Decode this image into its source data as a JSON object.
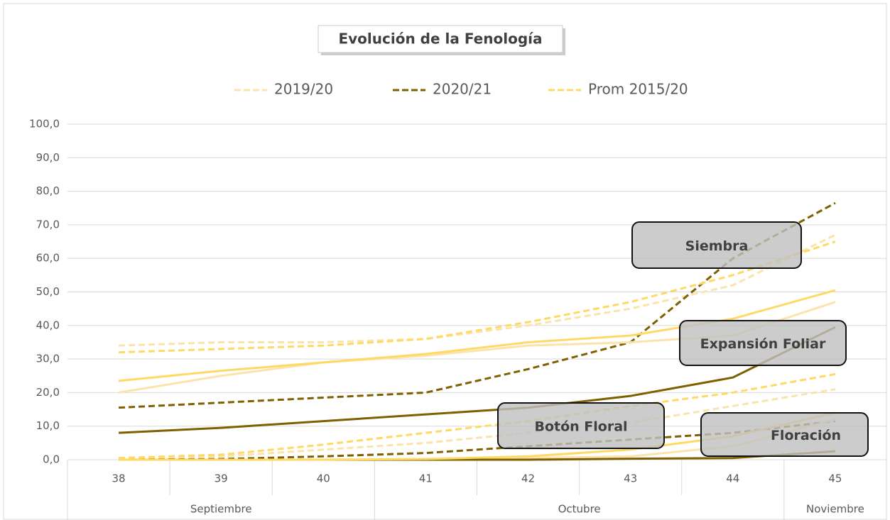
{
  "chart_data": {
    "type": "line",
    "title": "Evolución de la Fenología",
    "categories": [
      "38",
      "39",
      "40",
      "41",
      "42",
      "43",
      "44",
      "45"
    ],
    "months": [
      {
        "label": "Septiembre",
        "span": 3
      },
      {
        "label": "Octubre",
        "span": 4
      },
      {
        "label": "Noviembre",
        "span": 1
      }
    ],
    "ylim": [
      0,
      100
    ],
    "yticks": [
      {
        "value": 0,
        "label": "0,0"
      },
      {
        "value": 10,
        "label": "10,0"
      },
      {
        "value": 20,
        "label": "20,0"
      },
      {
        "value": 30,
        "label": "30,0"
      },
      {
        "value": 40,
        "label": "40,0"
      },
      {
        "value": 50,
        "label": "50,0"
      },
      {
        "value": 60,
        "label": "60,0"
      },
      {
        "value": 70,
        "label": "70,0"
      },
      {
        "value": 80,
        "label": "80,0"
      },
      {
        "value": 90,
        "label": "90,0"
      },
      {
        "value": 100,
        "label": "100,0"
      }
    ],
    "grid": true,
    "legend": "top",
    "stages": [
      {
        "label": "Siembra",
        "dashed": true,
        "series": [
          {
            "name": "2019/20",
            "color": "#fbe3ac",
            "values": [
              34,
              35,
              35,
              36,
              40,
              45,
              52,
              67
            ]
          },
          {
            "name": "2020/21",
            "color": "#7f6000",
            "values": [
              15.5,
              17,
              18.5,
              20,
              27,
              35,
              60,
              76.5
            ]
          },
          {
            "name": "Prom 2015/20",
            "color": "#ffd966",
            "values": [
              32,
              33,
              34,
              36,
              41,
              47,
              55,
              65
            ]
          }
        ]
      },
      {
        "label": "Expansión Foliar",
        "dashed": false,
        "series": [
          {
            "name": "2019/20",
            "color": "#fbe3ac",
            "values": [
              20,
              25,
              29,
              31,
              34,
              35,
              37,
              47
            ]
          },
          {
            "name": "2020/21",
            "color": "#7f6000",
            "values": [
              8,
              9.5,
              11.5,
              13.5,
              15.5,
              19,
              24.5,
              39.5
            ]
          },
          {
            "name": "Prom 2015/20",
            "color": "#ffd966",
            "values": [
              23.5,
              26.5,
              29,
              31.5,
              35,
              37,
              42,
              50.5
            ]
          }
        ]
      },
      {
        "label": "Botón Floral",
        "dashed": true,
        "series": [
          {
            "name": "2019/20",
            "color": "#fbe3ac",
            "values": [
              0.5,
              1,
              3,
              5,
              8,
              11,
              16,
              21
            ]
          },
          {
            "name": "2020/21",
            "color": "#7f6000",
            "values": [
              0,
              0.2,
              1,
              2,
              4,
              6,
              8,
              11.5
            ]
          },
          {
            "name": "Prom 2015/20",
            "color": "#ffd966",
            "values": [
              0.5,
              1.5,
              4.5,
              8,
              11.5,
              16,
              20,
              25.5
            ]
          }
        ]
      },
      {
        "label": "Floración",
        "dashed": false,
        "series": [
          {
            "name": "2019/20",
            "color": "#fbe3ac",
            "values": [
              0,
              0,
              0,
              0,
              0.5,
              1,
              4,
              12
            ]
          },
          {
            "name": "2020/21",
            "color": "#7f6000",
            "values": [
              0,
              0,
              0,
              0,
              0,
              0.3,
              0.5,
              2.5
            ]
          },
          {
            "name": "Prom 2015/20",
            "color": "#ffd966",
            "values": [
              0,
              0,
              0,
              0.2,
              1,
              3,
              7,
              14
            ]
          }
        ]
      }
    ]
  }
}
